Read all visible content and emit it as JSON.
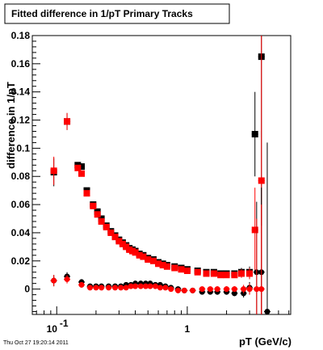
{
  "canvas_title": "Fitted difference in 1/pT  Primary Tracks",
  "timestamp": "Thu Oct 27 19:20:14 2011",
  "colors": {
    "series_black": "#000000",
    "series_red": "#ff0000",
    "frame": "#000000"
  },
  "chart_data": {
    "type": "scatter",
    "title": "Fitted difference in 1/pT  Primary Tracks",
    "xlabel": "pT (GeV/c)",
    "ylabel": "difference in 1/pT",
    "xscale": "log",
    "xlim": [
      0.065,
      6.2
    ],
    "ylim": [
      -0.018,
      0.18
    ],
    "x_ticks": [
      {
        "value": 0.1,
        "label": "10",
        "exp": "-1"
      },
      {
        "value": 1,
        "label": "1",
        "exp": ""
      }
    ],
    "y_ticks": [
      {
        "value": 0,
        "label": "0"
      },
      {
        "value": 0.02,
        "label": "0.02"
      },
      {
        "value": 0.04,
        "label": "0.04"
      },
      {
        "value": 0.06,
        "label": "0.06"
      },
      {
        "value": 0.08,
        "label": "0.08"
      },
      {
        "value": 0.1,
        "label": "0.1"
      },
      {
        "value": 0.12,
        "label": "0.12"
      },
      {
        "value": 0.14,
        "label": "0.14"
      },
      {
        "value": 0.16,
        "label": "0.16"
      },
      {
        "value": 0.18,
        "label": "0.18"
      }
    ],
    "series": [
      {
        "color": "#000000",
        "marker_style": "square",
        "points": [
          [
            0.095,
            0.083,
            0.01
          ],
          [
            0.12,
            0.119,
            0.006
          ],
          [
            0.145,
            0.088,
            0.002
          ],
          [
            0.155,
            0.087,
            0.002
          ],
          [
            0.17,
            0.07,
            0.001
          ],
          [
            0.19,
            0.06,
            0.001
          ],
          [
            0.205,
            0.055,
            0.001
          ],
          [
            0.22,
            0.05,
            0.001
          ],
          [
            0.24,
            0.045,
            0.001
          ],
          [
            0.26,
            0.041,
            0.001
          ],
          [
            0.28,
            0.038,
            0.001
          ],
          [
            0.3,
            0.035,
            0.001
          ],
          [
            0.32,
            0.033,
            0.001
          ],
          [
            0.34,
            0.031,
            0.001
          ],
          [
            0.36,
            0.029,
            0.001
          ],
          [
            0.38,
            0.028,
            0.001
          ],
          [
            0.4,
            0.027,
            0.001
          ],
          [
            0.43,
            0.025,
            0.001
          ],
          [
            0.46,
            0.024,
            0.001
          ],
          [
            0.5,
            0.022,
            0.001
          ],
          [
            0.55,
            0.021,
            0.001
          ],
          [
            0.6,
            0.019,
            0.001
          ],
          [
            0.65,
            0.018,
            0.001
          ],
          [
            0.7,
            0.017,
            0.001
          ],
          [
            0.8,
            0.016,
            0.001
          ],
          [
            0.9,
            0.015,
            0.001
          ],
          [
            1.0,
            0.014,
            0.001
          ],
          [
            1.2,
            0.013,
            0.001
          ],
          [
            1.4,
            0.012,
            0.001
          ],
          [
            1.6,
            0.012,
            0.001
          ],
          [
            1.8,
            0.011,
            0.002
          ],
          [
            2.0,
            0.011,
            0.002
          ],
          [
            2.3,
            0.011,
            0.002
          ],
          [
            2.6,
            0.012,
            0.003
          ],
          [
            3.0,
            0.012,
            0.004
          ],
          [
            3.3,
            0.11,
            0.03
          ],
          [
            3.7,
            0.165,
            0.12
          ]
        ]
      },
      {
        "color": "#ff0000",
        "marker_style": "square",
        "points": [
          [
            0.095,
            0.084,
            0.01
          ],
          [
            0.12,
            0.119,
            0.006
          ],
          [
            0.145,
            0.086,
            0.002
          ],
          [
            0.155,
            0.082,
            0.002
          ],
          [
            0.17,
            0.068,
            0.001
          ],
          [
            0.19,
            0.059,
            0.001
          ],
          [
            0.205,
            0.053,
            0.001
          ],
          [
            0.22,
            0.048,
            0.001
          ],
          [
            0.24,
            0.044,
            0.001
          ],
          [
            0.26,
            0.04,
            0.001
          ],
          [
            0.28,
            0.037,
            0.001
          ],
          [
            0.3,
            0.034,
            0.001
          ],
          [
            0.32,
            0.032,
            0.001
          ],
          [
            0.34,
            0.03,
            0.001
          ],
          [
            0.36,
            0.028,
            0.001
          ],
          [
            0.38,
            0.027,
            0.001
          ],
          [
            0.4,
            0.026,
            0.001
          ],
          [
            0.43,
            0.024,
            0.001
          ],
          [
            0.46,
            0.023,
            0.001
          ],
          [
            0.5,
            0.021,
            0.001
          ],
          [
            0.55,
            0.02,
            0.001
          ],
          [
            0.6,
            0.018,
            0.001
          ],
          [
            0.65,
            0.017,
            0.001
          ],
          [
            0.7,
            0.016,
            0.001
          ],
          [
            0.8,
            0.015,
            0.001
          ],
          [
            0.9,
            0.014,
            0.001
          ],
          [
            1.0,
            0.013,
            0.001
          ],
          [
            1.2,
            0.012,
            0.001
          ],
          [
            1.4,
            0.011,
            0.001
          ],
          [
            1.6,
            0.011,
            0.001
          ],
          [
            1.8,
            0.01,
            0.002
          ],
          [
            2.0,
            0.01,
            0.002
          ],
          [
            2.3,
            0.01,
            0.002
          ],
          [
            2.6,
            0.011,
            0.003
          ],
          [
            3.0,
            0.011,
            0.004
          ],
          [
            3.3,
            0.042,
            0.03
          ],
          [
            3.7,
            0.077,
            0.12
          ]
        ]
      },
      {
        "color": "#000000",
        "marker_style": "circle",
        "points": [
          [
            0.095,
            0.006,
            0.004
          ],
          [
            0.12,
            0.009,
            0.003
          ],
          [
            0.155,
            0.005,
            0.002
          ],
          [
            0.18,
            0.002,
            0.001
          ],
          [
            0.2,
            0.002,
            0.001
          ],
          [
            0.22,
            0.002,
            0.001
          ],
          [
            0.25,
            0.002,
            0.001
          ],
          [
            0.28,
            0.002,
            0.001
          ],
          [
            0.31,
            0.002,
            0.001
          ],
          [
            0.34,
            0.003,
            0.001
          ],
          [
            0.37,
            0.003,
            0.001
          ],
          [
            0.4,
            0.004,
            0.001
          ],
          [
            0.44,
            0.004,
            0.001
          ],
          [
            0.48,
            0.004,
            0.001
          ],
          [
            0.52,
            0.004,
            0.001
          ],
          [
            0.57,
            0.003,
            0.001
          ],
          [
            0.62,
            0.003,
            0.001
          ],
          [
            0.68,
            0.002,
            0.001
          ],
          [
            0.75,
            0.001,
            0.001
          ],
          [
            0.85,
            0.0,
            0.001
          ],
          [
            0.95,
            -0.001,
            0.001
          ],
          [
            1.1,
            -0.001,
            0.001
          ],
          [
            1.3,
            -0.002,
            0.001
          ],
          [
            1.5,
            -0.002,
            0.001
          ],
          [
            1.7,
            -0.002,
            0.002
          ],
          [
            2.0,
            -0.002,
            0.002
          ],
          [
            2.3,
            -0.003,
            0.002
          ],
          [
            2.7,
            -0.003,
            0.003
          ],
          [
            3.0,
            0.001,
            0.004
          ],
          [
            3.4,
            0.012,
            0.05
          ],
          [
            3.7,
            0.012,
            0.06
          ],
          [
            4.1,
            -0.016,
            0.12
          ]
        ]
      },
      {
        "color": "#ff0000",
        "marker_style": "circle",
        "points": [
          [
            0.095,
            0.006,
            0.004
          ],
          [
            0.12,
            0.007,
            0.003
          ],
          [
            0.155,
            0.003,
            0.002
          ],
          [
            0.18,
            0.001,
            0.001
          ],
          [
            0.2,
            0.001,
            0.001
          ],
          [
            0.22,
            0.001,
            0.001
          ],
          [
            0.25,
            0.001,
            0.001
          ],
          [
            0.28,
            0.001,
            0.001
          ],
          [
            0.31,
            0.001,
            0.001
          ],
          [
            0.34,
            0.001,
            0.001
          ],
          [
            0.37,
            0.002,
            0.001
          ],
          [
            0.4,
            0.002,
            0.001
          ],
          [
            0.44,
            0.002,
            0.001
          ],
          [
            0.48,
            0.002,
            0.001
          ],
          [
            0.52,
            0.002,
            0.001
          ],
          [
            0.57,
            0.002,
            0.001
          ],
          [
            0.62,
            0.001,
            0.001
          ],
          [
            0.68,
            0.001,
            0.001
          ],
          [
            0.75,
            0.0,
            0.001
          ],
          [
            0.85,
            -0.001,
            0.001
          ],
          [
            0.95,
            -0.001,
            0.001
          ],
          [
            1.1,
            -0.001,
            0.001
          ],
          [
            1.3,
            0.0,
            0.001
          ],
          [
            1.5,
            0.0,
            0.001
          ],
          [
            1.7,
            0.0,
            0.002
          ],
          [
            2.0,
            0.0,
            0.002
          ],
          [
            2.3,
            0.0,
            0.002
          ],
          [
            2.7,
            0.0,
            0.003
          ],
          [
            3.0,
            0.0,
            0.004
          ],
          [
            3.4,
            0.0,
            0.05
          ],
          [
            3.7,
            0.0,
            0.06
          ]
        ]
      }
    ]
  }
}
